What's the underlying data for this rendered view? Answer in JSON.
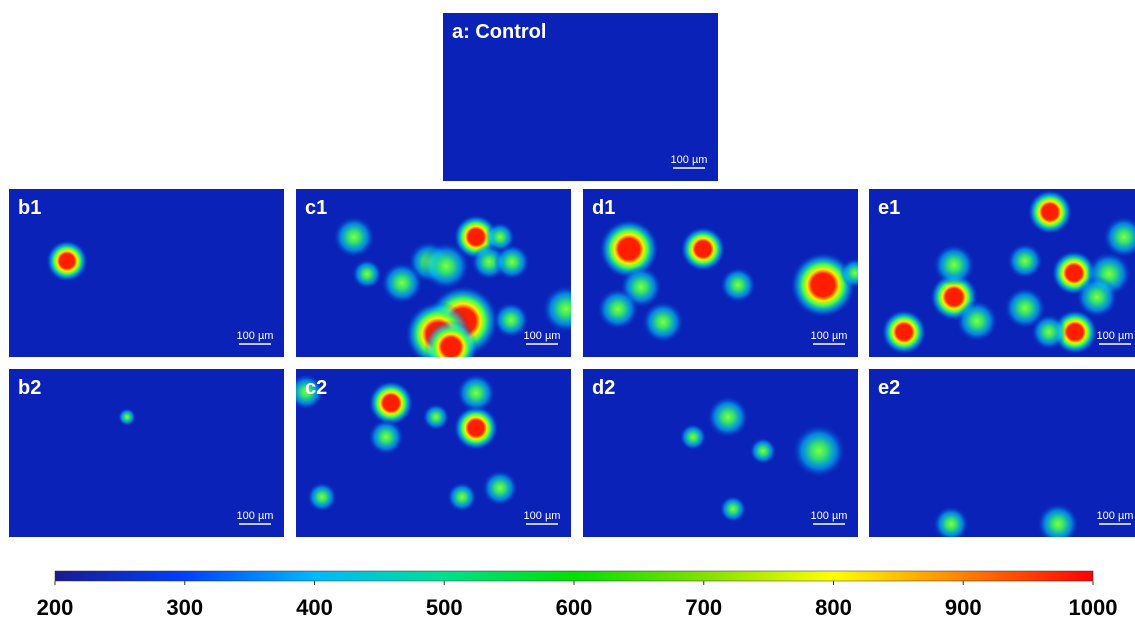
{
  "panels": [
    {
      "label": "a: Control",
      "scale_bar": "100 µm"
    },
    {
      "label": "b1",
      "scale_bar": "100 µm"
    },
    {
      "label": "c1",
      "scale_bar": "100 µm"
    },
    {
      "label": "d1",
      "scale_bar": "100 µm"
    },
    {
      "label": "e1",
      "scale_bar": "100 µm"
    },
    {
      "label": "b2",
      "scale_bar": "100 µm"
    },
    {
      "label": "c2",
      "scale_bar": "100 µm"
    },
    {
      "label": "d2",
      "scale_bar": "100 µm"
    },
    {
      "label": "e2",
      "scale_bar": "100 µm"
    }
  ],
  "colorbar": {
    "range": [
      200,
      1000
    ],
    "ticks": [
      200,
      300,
      400,
      500,
      600,
      700,
      800,
      900,
      1000
    ]
  }
}
